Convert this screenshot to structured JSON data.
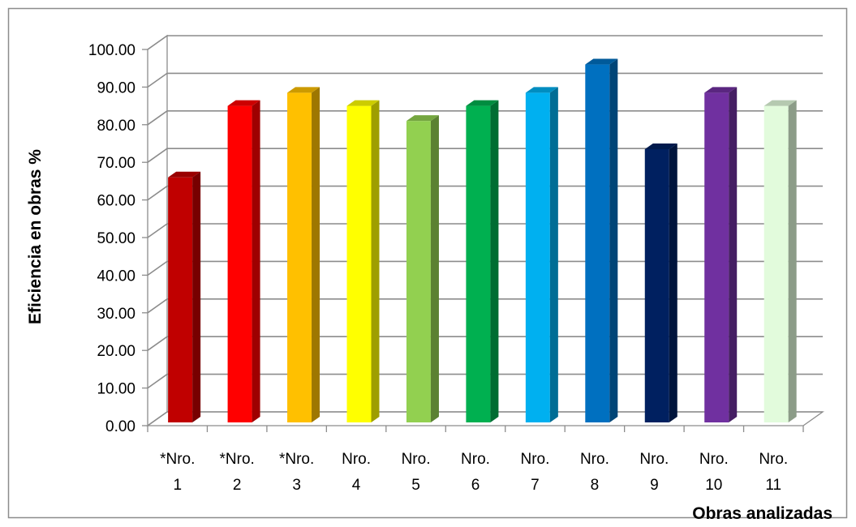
{
  "chart_data": {
    "type": "bar",
    "title": "",
    "xlabel": "Obras analizadas",
    "ylabel": "Eficiencia en obras %",
    "ylim": [
      0,
      100
    ],
    "yticks": [
      "0.00",
      "10.00",
      "20.00",
      "30.00",
      "40.00",
      "50.00",
      "60.00",
      "70.00",
      "80.00",
      "90.00",
      "100.00"
    ],
    "categories": [
      {
        "line1": "*Nro.",
        "line2": "1"
      },
      {
        "line1": "*Nro.",
        "line2": "2"
      },
      {
        "line1": "*Nro.",
        "line2": "3"
      },
      {
        "line1": "Nro.",
        "line2": "4"
      },
      {
        "line1": "Nro.",
        "line2": "5"
      },
      {
        "line1": "Nro.",
        "line2": "6"
      },
      {
        "line1": "Nro.",
        "line2": "7"
      },
      {
        "line1": "Nro.",
        "line2": "8"
      },
      {
        "line1": "Nro.",
        "line2": "9"
      },
      {
        "line1": "Nro.",
        "line2": "10"
      },
      {
        "line1": "Nro.",
        "line2": "11"
      }
    ],
    "values": [
      66,
      85,
      88.5,
      85,
      81,
      85,
      88.5,
      96,
      73.5,
      88.5,
      85
    ],
    "colors": [
      "#c00000",
      "#ff0000",
      "#ffc000",
      "#ffff00",
      "#92d050",
      "#00b050",
      "#00b0f0",
      "#0070c0",
      "#002060",
      "#7030a0",
      "#e2fbdc"
    ],
    "grid": true,
    "legend": "none",
    "style": "3d-column"
  }
}
